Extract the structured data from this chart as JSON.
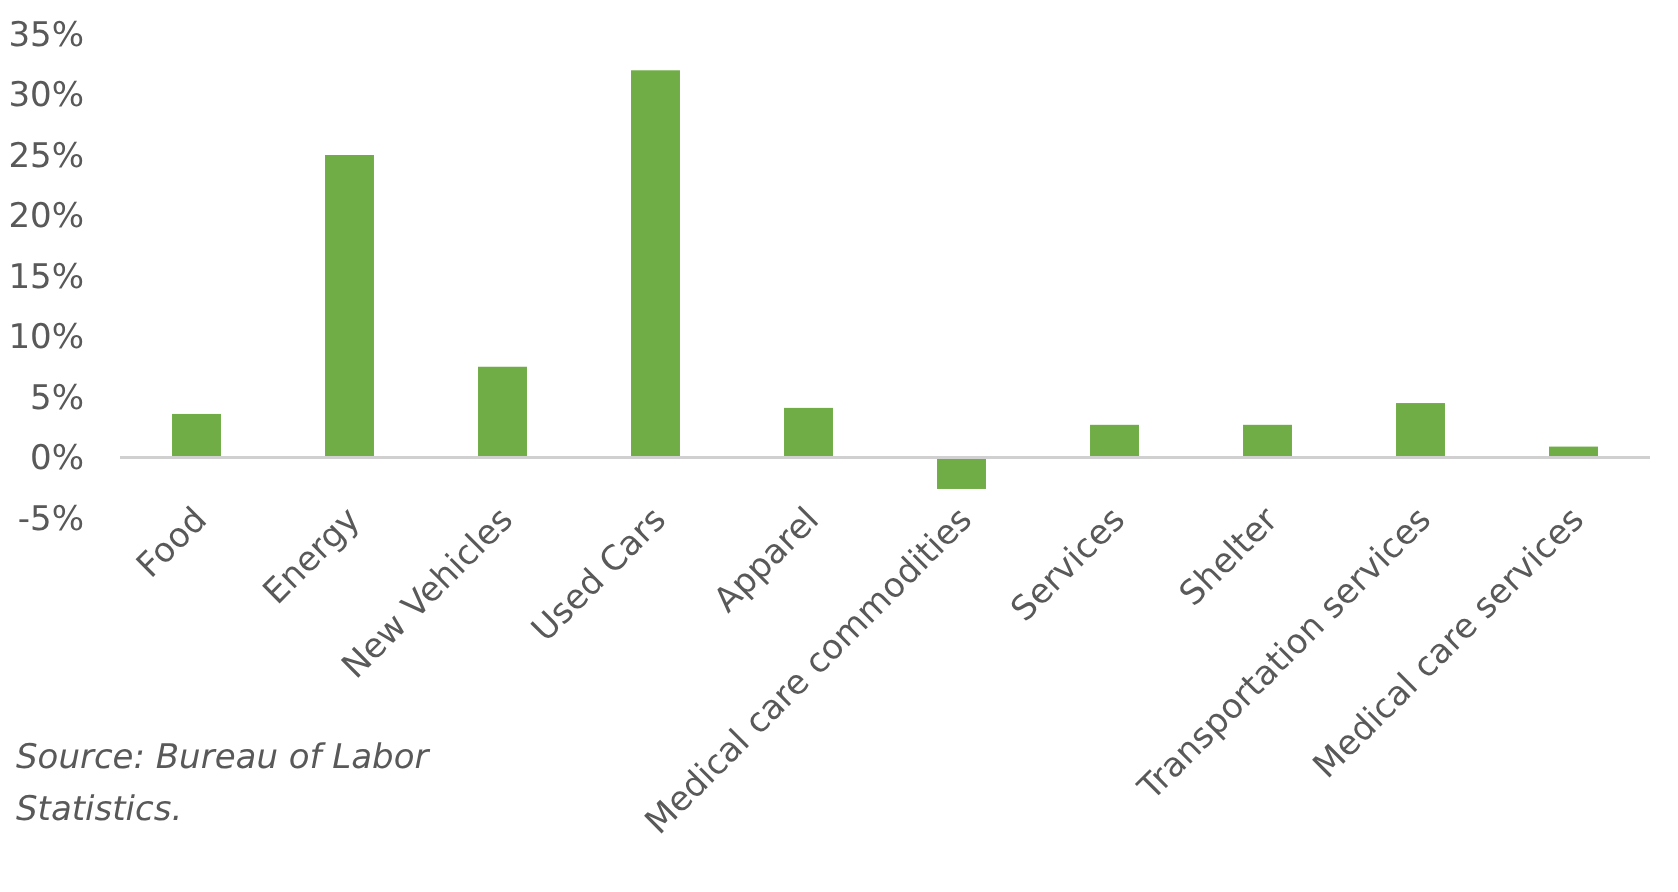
{
  "chart_data": {
    "type": "bar",
    "categories": [
      "Food",
      "Energy",
      "New Vehicles",
      "Used Cars",
      "Apparel",
      "Medical care commodities",
      "Services",
      "Shelter",
      "Transportation services",
      "Medical care services"
    ],
    "values": [
      3.6,
      25,
      7.5,
      32,
      4.1,
      -2.6,
      2.7,
      2.7,
      4.5,
      0.9
    ],
    "color": "#70ad47",
    "ylim": [
      -5,
      35
    ],
    "yticks": [
      {
        "value": -5,
        "label": "-5%"
      },
      {
        "value": 0,
        "label": "0%"
      },
      {
        "value": 5,
        "label": "5%"
      },
      {
        "value": 10,
        "label": "10%"
      },
      {
        "value": 15,
        "label": "15%"
      },
      {
        "value": 20,
        "label": "20%"
      },
      {
        "value": 25,
        "label": "25%"
      },
      {
        "value": 30,
        "label": "30%"
      },
      {
        "value": 35,
        "label": "35%"
      }
    ],
    "grid": false,
    "annotations": [
      "Source: Bureau of Labor Statistics."
    ]
  }
}
